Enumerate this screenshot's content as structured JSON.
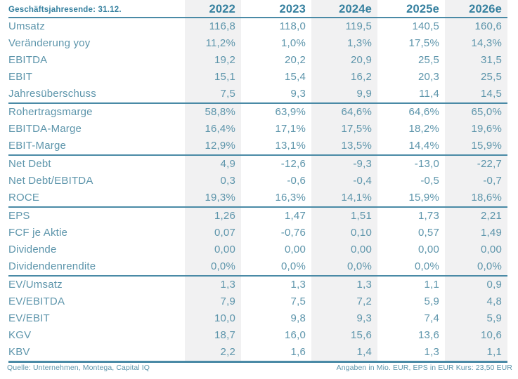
{
  "colors": {
    "text": "#5d95ab",
    "header_text": "#35809f",
    "line": "#4a8aa6",
    "column_stripe": "#f1f1f2",
    "background": "#ffffff"
  },
  "header": {
    "fiscal_label": "Geschäftsjahresende: 31.12.",
    "columns": [
      "2022",
      "2023",
      "2024e",
      "2025e",
      "2026e"
    ]
  },
  "rows": [
    {
      "label": "Umsatz",
      "values": [
        "116,8",
        "118,0",
        "119,5",
        "140,5",
        "160,6"
      ]
    },
    {
      "label": "Veränderung yoy",
      "values": [
        "11,2%",
        "1,0%",
        "1,3%",
        "17,5%",
        "14,3%"
      ]
    },
    {
      "label": "EBITDA",
      "values": [
        "19,2",
        "20,2",
        "20,9",
        "25,5",
        "31,5"
      ]
    },
    {
      "label": "EBIT",
      "values": [
        "15,1",
        "15,4",
        "16,2",
        "20,3",
        "25,5"
      ]
    },
    {
      "label": "Jahresüberschuss",
      "values": [
        "7,5",
        "9,3",
        "9,9",
        "11,4",
        "14,5"
      ]
    },
    {
      "label": "Rohertragsmarge",
      "rule_above": true,
      "values": [
        "58,8%",
        "63,9%",
        "64,6%",
        "64,6%",
        "65,0%"
      ]
    },
    {
      "label": "EBITDA-Marge",
      "values": [
        "16,4%",
        "17,1%",
        "17,5%",
        "18,2%",
        "19,6%"
      ]
    },
    {
      "label": "EBIT-Marge",
      "values": [
        "12,9%",
        "13,1%",
        "13,5%",
        "14,4%",
        "15,9%"
      ]
    },
    {
      "label": "Net Debt",
      "rule_above": true,
      "values": [
        "4,9",
        "-12,6",
        "-9,3",
        "-13,0",
        "-22,7"
      ]
    },
    {
      "label": "Net Debt/EBITDA",
      "values": [
        "0,3",
        "-0,6",
        "-0,4",
        "-0,5",
        "-0,7"
      ]
    },
    {
      "label": "ROCE",
      "values": [
        "19,3%",
        "16,3%",
        "14,1%",
        "15,9%",
        "18,6%"
      ]
    },
    {
      "label": "EPS",
      "rule_above": true,
      "values": [
        "1,26",
        "1,47",
        "1,51",
        "1,73",
        "2,21"
      ]
    },
    {
      "label": "FCF je Aktie",
      "values": [
        "0,07",
        "-0,76",
        "0,10",
        "0,57",
        "1,49"
      ]
    },
    {
      "label": "Dividende",
      "values": [
        "0,00",
        "0,00",
        "0,00",
        "0,00",
        "0,00"
      ]
    },
    {
      "label": "Dividendenrendite",
      "values": [
        "0,0%",
        "0,0%",
        "0,0%",
        "0,0%",
        "0,0%"
      ]
    },
    {
      "label": "EV/Umsatz",
      "rule_above": true,
      "values": [
        "1,3",
        "1,3",
        "1,3",
        "1,1",
        "0,9"
      ]
    },
    {
      "label": "EV/EBITDA",
      "values": [
        "7,9",
        "7,5",
        "7,2",
        "5,9",
        "4,8"
      ]
    },
    {
      "label": "EV/EBIT",
      "values": [
        "10,0",
        "9,8",
        "9,3",
        "7,4",
        "5,9"
      ]
    },
    {
      "label": "KGV",
      "values": [
        "18,7",
        "16,0",
        "15,6",
        "13,6",
        "10,6"
      ]
    },
    {
      "label": "KBV",
      "values": [
        "2,2",
        "1,6",
        "1,4",
        "1,3",
        "1,1"
      ]
    }
  ],
  "footer": {
    "source": "Quelle: Unternehmen, Montega, Capital IQ",
    "note": "Angaben in Mio. EUR, EPS in EUR Kurs: 23,50 EUR"
  },
  "chart_data": {
    "type": "table",
    "title": "Geschäftsjahresende: 31.12.",
    "categories": [
      "2022",
      "2023",
      "2024e",
      "2025e",
      "2026e"
    ],
    "series": [
      {
        "name": "Umsatz",
        "values": [
          116.8,
          118.0,
          119.5,
          140.5,
          160.6
        ]
      },
      {
        "name": "Veränderung yoy %",
        "values": [
          11.2,
          1.0,
          1.3,
          17.5,
          14.3
        ]
      },
      {
        "name": "EBITDA",
        "values": [
          19.2,
          20.2,
          20.9,
          25.5,
          31.5
        ]
      },
      {
        "name": "EBIT",
        "values": [
          15.1,
          15.4,
          16.2,
          20.3,
          25.5
        ]
      },
      {
        "name": "Jahresüberschuss",
        "values": [
          7.5,
          9.3,
          9.9,
          11.4,
          14.5
        ]
      },
      {
        "name": "Rohertragsmarge %",
        "values": [
          58.8,
          63.9,
          64.6,
          64.6,
          65.0
        ]
      },
      {
        "name": "EBITDA-Marge %",
        "values": [
          16.4,
          17.1,
          17.5,
          18.2,
          19.6
        ]
      },
      {
        "name": "EBIT-Marge %",
        "values": [
          12.9,
          13.1,
          13.5,
          14.4,
          15.9
        ]
      },
      {
        "name": "Net Debt",
        "values": [
          4.9,
          -12.6,
          -9.3,
          -13.0,
          -22.7
        ]
      },
      {
        "name": "Net Debt/EBITDA",
        "values": [
          0.3,
          -0.6,
          -0.4,
          -0.5,
          -0.7
        ]
      },
      {
        "name": "ROCE %",
        "values": [
          19.3,
          16.3,
          14.1,
          15.9,
          18.6
        ]
      },
      {
        "name": "EPS",
        "values": [
          1.26,
          1.47,
          1.51,
          1.73,
          2.21
        ]
      },
      {
        "name": "FCF je Aktie",
        "values": [
          0.07,
          -0.76,
          0.1,
          0.57,
          1.49
        ]
      },
      {
        "name": "Dividende",
        "values": [
          0.0,
          0.0,
          0.0,
          0.0,
          0.0
        ]
      },
      {
        "name": "Dividendenrendite %",
        "values": [
          0.0,
          0.0,
          0.0,
          0.0,
          0.0
        ]
      },
      {
        "name": "EV/Umsatz",
        "values": [
          1.3,
          1.3,
          1.3,
          1.1,
          0.9
        ]
      },
      {
        "name": "EV/EBITDA",
        "values": [
          7.9,
          7.5,
          7.2,
          5.9,
          4.8
        ]
      },
      {
        "name": "EV/EBIT",
        "values": [
          10.0,
          9.8,
          9.3,
          7.4,
          5.9
        ]
      },
      {
        "name": "KGV",
        "values": [
          18.7,
          16.0,
          15.6,
          13.6,
          10.6
        ]
      },
      {
        "name": "KBV",
        "values": [
          2.2,
          1.6,
          1.4,
          1.3,
          1.1
        ]
      }
    ],
    "units_note": "Angaben in Mio. EUR, EPS in EUR Kurs: 23,50 EUR",
    "source_note": "Quelle: Unternehmen, Montega, Capital IQ"
  }
}
